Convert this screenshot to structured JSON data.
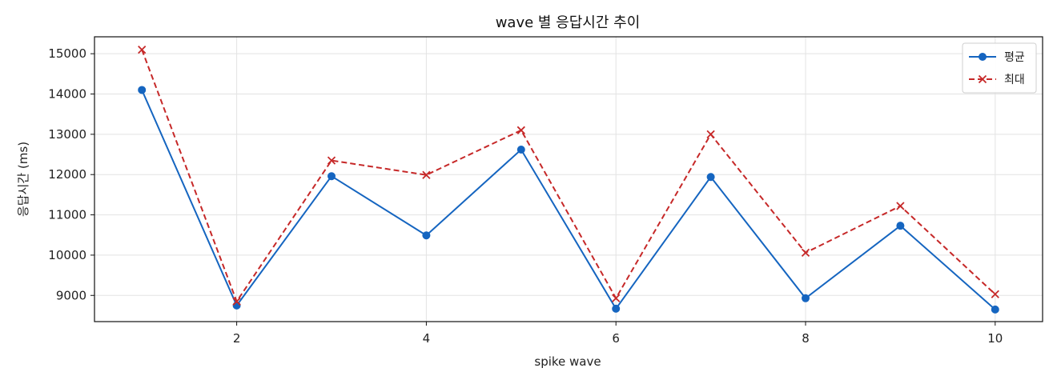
{
  "chart_data": {
    "type": "line",
    "title": "wave 별 응답시간 추이",
    "xlabel": "spike wave",
    "ylabel": "응답시간 (ms)",
    "x": [
      1,
      2,
      3,
      4,
      5,
      6,
      7,
      8,
      9,
      10
    ],
    "xlim": [
      0.5,
      10.5
    ],
    "ylim": [
      8350,
      15420
    ],
    "xticks": [
      2,
      4,
      6,
      8,
      10
    ],
    "yticks": [
      9000,
      10000,
      11000,
      12000,
      13000,
      14000,
      15000
    ],
    "grid": true,
    "legend_position": "top-right",
    "series": [
      {
        "name": "평균",
        "color": "#1565c0",
        "line_style": "solid",
        "marker": "circle",
        "values": [
          14100,
          8750,
          11960,
          10490,
          12620,
          8670,
          11940,
          8930,
          10730,
          8650
        ]
      },
      {
        "name": "최대",
        "color": "#c62828",
        "line_style": "dashed",
        "marker": "x",
        "values": [
          15100,
          8850,
          12350,
          11990,
          13100,
          8930,
          13000,
          10060,
          11220,
          9030
        ]
      }
    ]
  }
}
